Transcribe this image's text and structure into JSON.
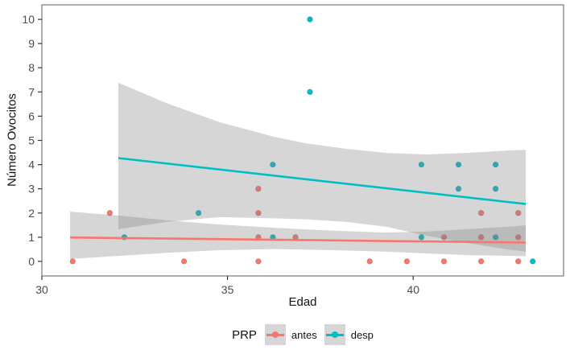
{
  "colors": {
    "antes": "#F8766D",
    "desp": "#00BFC4",
    "band": "#808080",
    "panel_border": "#8c8c8c",
    "tick": "#333333",
    "tick_label": "#4d4d4d",
    "legend_key_bg": "#d6d6d6"
  },
  "chart_data": {
    "type": "scatter",
    "title": "",
    "xlabel": "Edad",
    "ylabel": "Número Ovocitos",
    "xlim": [
      30,
      44.05
    ],
    "ylim": [
      -0.6,
      10.6
    ],
    "x_ticks": [
      30,
      35,
      40
    ],
    "y_ticks": [
      0,
      1,
      2,
      3,
      4,
      5,
      6,
      7,
      8,
      9,
      10
    ],
    "grid": false,
    "legend": {
      "title": "PRP",
      "position": "bottom",
      "entries": [
        "antes",
        "desp"
      ]
    },
    "series": [
      {
        "name": "antes",
        "color": "#F8766D",
        "x_offset": -0.17,
        "points": [
          [
            31,
            0
          ],
          [
            32,
            2
          ],
          [
            34,
            0
          ],
          [
            36,
            3
          ],
          [
            36,
            2
          ],
          [
            36,
            1
          ],
          [
            36,
            0
          ],
          [
            37,
            1
          ],
          [
            39,
            0
          ],
          [
            40,
            0
          ],
          [
            41,
            1
          ],
          [
            41,
            0
          ],
          [
            42,
            2
          ],
          [
            42,
            1
          ],
          [
            42,
            0
          ],
          [
            43,
            2
          ],
          [
            43,
            1
          ],
          [
            43,
            0
          ]
        ],
        "regression": [
          [
            30.76,
            0.99
          ],
          [
            43.03,
            0.78
          ]
        ],
        "ci_band": [
          [
            30.76,
            2.06,
            0.1
          ],
          [
            32.12,
            1.89,
            0.23
          ],
          [
            33.43,
            1.69,
            0.36
          ],
          [
            34.73,
            1.53,
            0.46
          ],
          [
            36.25,
            1.39,
            0.51
          ],
          [
            37.98,
            1.26,
            0.46
          ],
          [
            39.28,
            1.19,
            0.4
          ],
          [
            40.36,
            1.23,
            0.33
          ],
          [
            41.45,
            1.33,
            0.26
          ],
          [
            42.53,
            1.43,
            0.23
          ],
          [
            43.03,
            1.49,
            0.21
          ]
        ]
      },
      {
        "name": "desp",
        "color": "#00BFC4",
        "x_offset": 0.22,
        "points": [
          [
            32,
            1
          ],
          [
            34,
            2
          ],
          [
            36,
            4
          ],
          [
            36,
            1
          ],
          [
            37,
            10
          ],
          [
            37,
            7
          ],
          [
            40,
            4
          ],
          [
            40,
            1
          ],
          [
            41,
            4
          ],
          [
            41,
            3
          ],
          [
            42,
            4
          ],
          [
            42,
            3
          ],
          [
            42,
            1
          ],
          [
            43,
            0
          ]
        ],
        "regression": [
          [
            32.06,
            4.27
          ],
          [
            43.03,
            2.37
          ]
        ],
        "ci_band": [
          [
            32.06,
            7.38,
            1.33
          ],
          [
            33.36,
            6.54,
            1.63
          ],
          [
            34.79,
            5.75,
            1.83
          ],
          [
            36.25,
            5.15,
            1.78
          ],
          [
            37.11,
            4.88,
            1.74
          ],
          [
            38.2,
            4.65,
            1.63
          ],
          [
            39.28,
            4.48,
            1.43
          ],
          [
            40.36,
            4.42,
            1.06
          ],
          [
            41.45,
            4.48,
            0.76
          ],
          [
            42.53,
            4.58,
            0.5
          ],
          [
            43.03,
            4.61,
            0.4
          ]
        ]
      }
    ]
  }
}
